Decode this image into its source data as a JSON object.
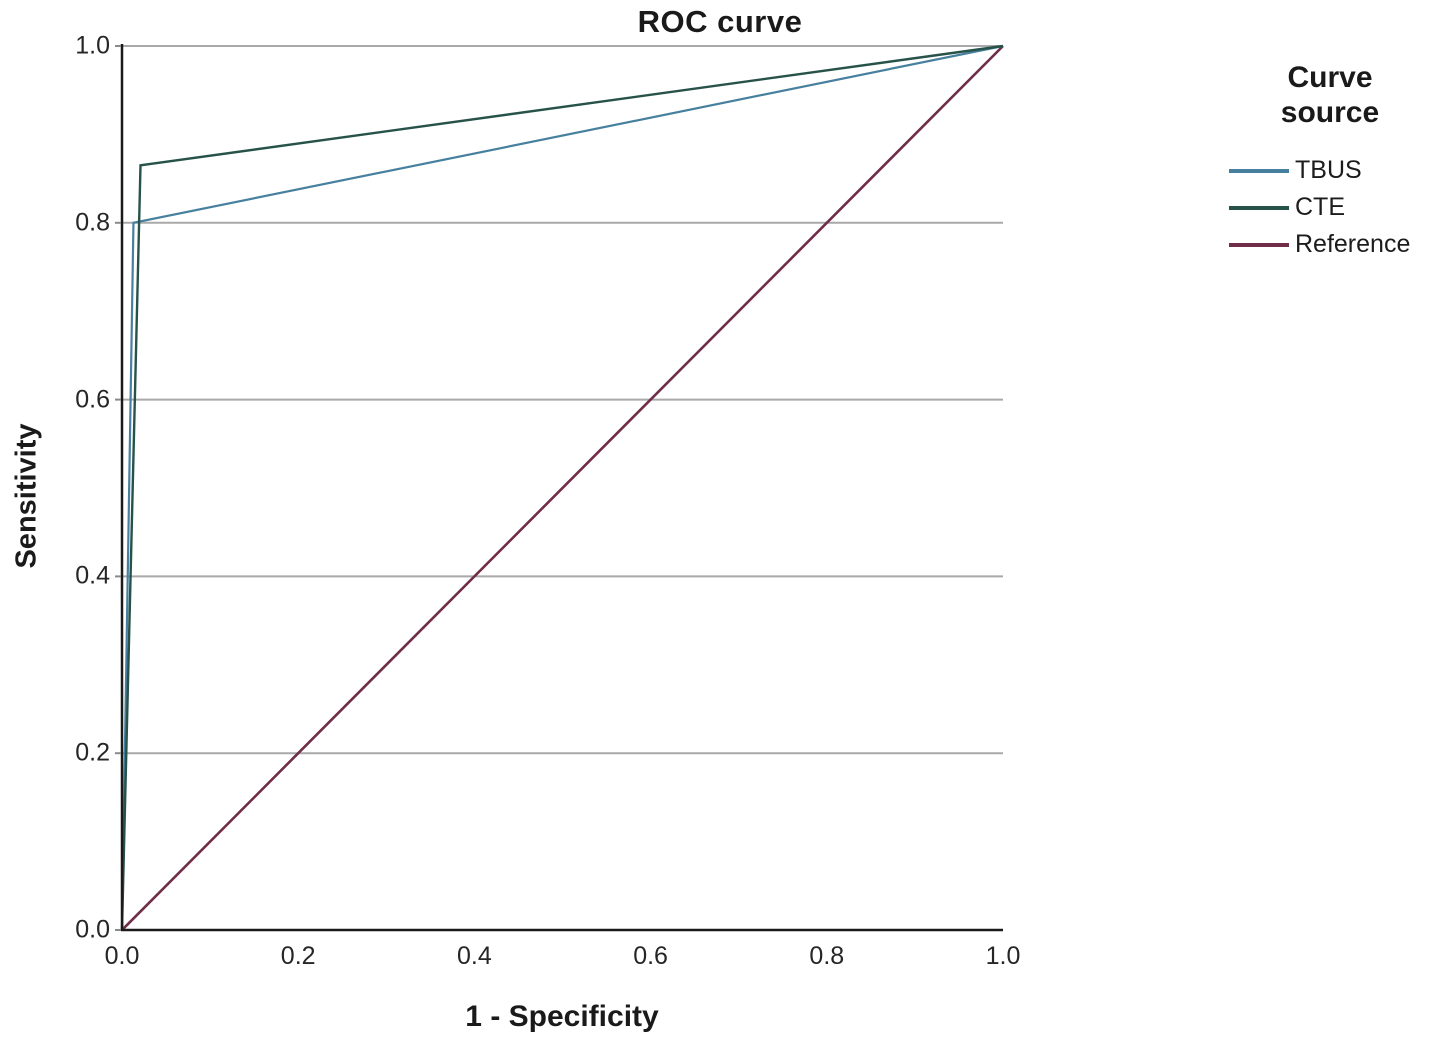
{
  "page": {
    "background": "#ffffff"
  },
  "chart_data": {
    "type": "line",
    "title": "ROC curve",
    "xlabel": "1 - Specificity",
    "ylabel": "Sensitivity",
    "xlim": [
      0,
      1
    ],
    "ylim": [
      0,
      1
    ],
    "x_tick_values": [
      0,
      0.2,
      0.4,
      0.6,
      0.8,
      1.0
    ],
    "x_tick_labels": [
      "0.0",
      "0.2",
      "0.4",
      "0.6",
      "0.8",
      "1.0"
    ],
    "y_tick_values": [
      0,
      0.2,
      0.4,
      0.6,
      0.8,
      1.0
    ],
    "y_tick_labels": [
      "0.0",
      "0.2",
      "0.4",
      "0.6",
      "0.8",
      "1.0"
    ],
    "grid": "horizontal-only",
    "colors": {
      "axis": "#1a1a1a",
      "gridline": "#a9a9a9",
      "text": "#1a1a1a"
    },
    "legend": {
      "title": "Curve source",
      "position": "right"
    },
    "series": [
      {
        "name": "TBUS",
        "color": "#47809e",
        "points": [
          [
            0,
            0
          ],
          [
            0.013,
            0.8
          ],
          [
            1,
            1
          ]
        ]
      },
      {
        "name": "CTE",
        "color": "#27524a",
        "points": [
          [
            0,
            0
          ],
          [
            0.021,
            0.865
          ],
          [
            1,
            1
          ]
        ]
      },
      {
        "name": "Reference",
        "color": "#6f2d48",
        "points": [
          [
            0,
            0
          ],
          [
            1,
            1
          ]
        ]
      }
    ]
  }
}
